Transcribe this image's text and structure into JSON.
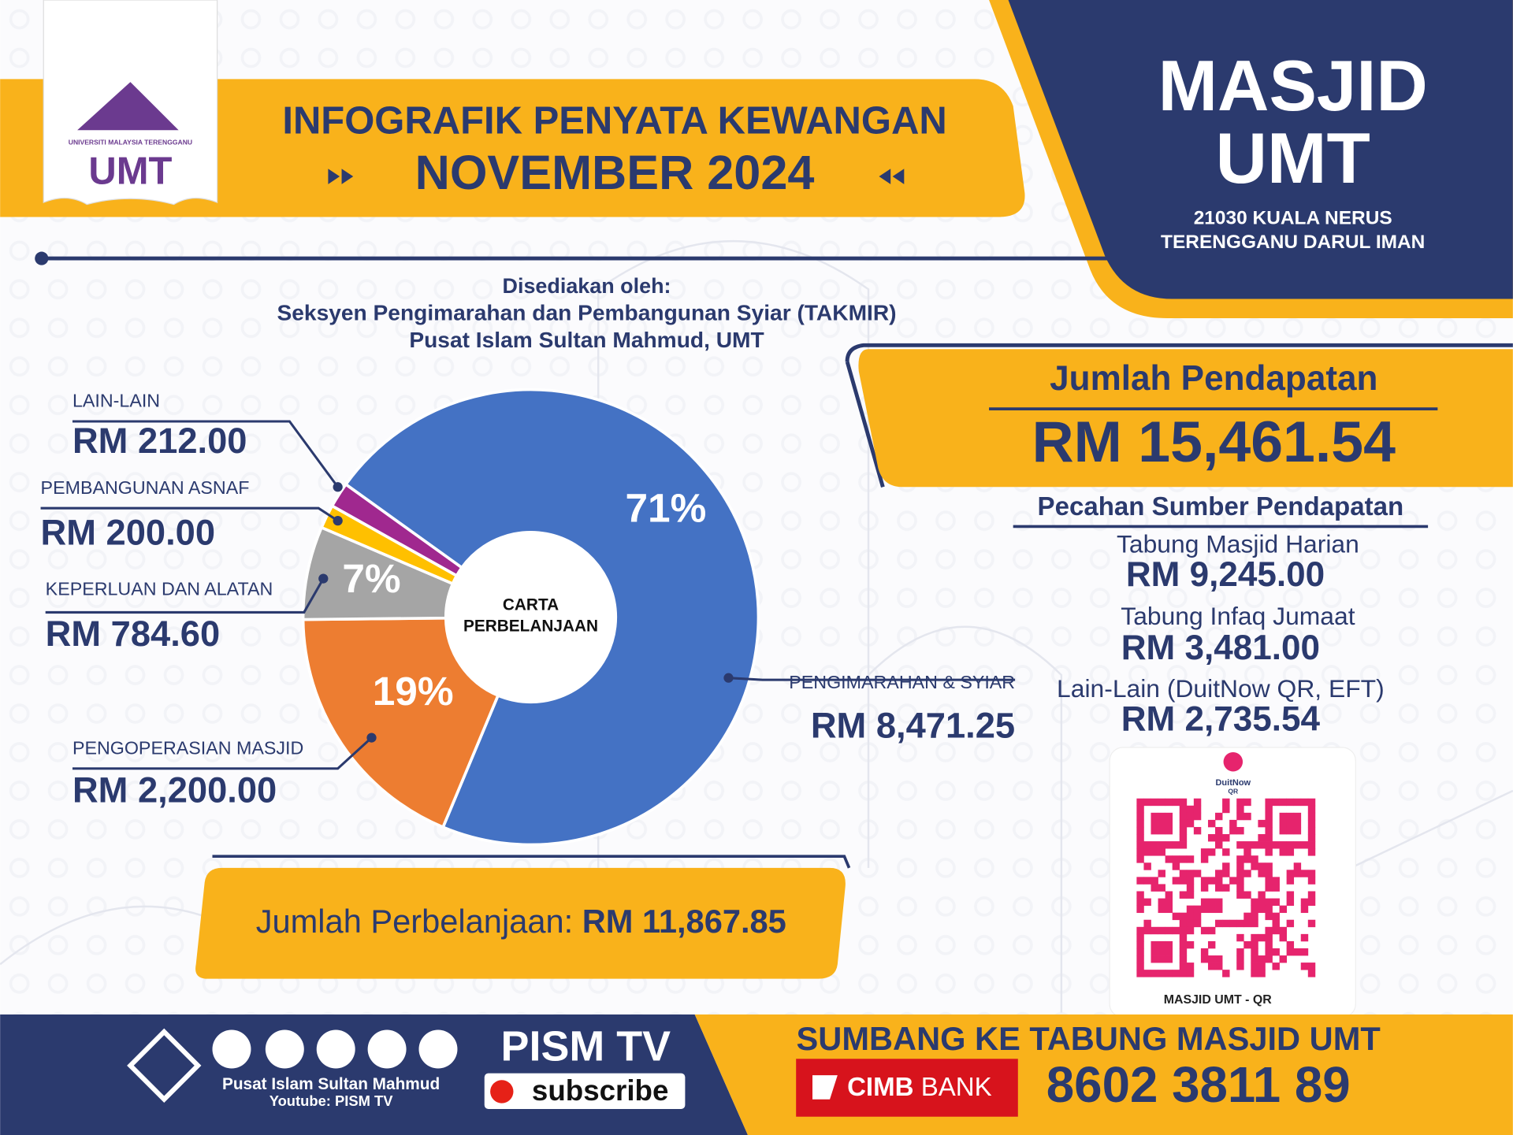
{
  "header": {
    "logo_text": "UMT",
    "logo_subtext": "UNIVERSITI MALAYSIA TERENGGANU",
    "title": "INFOGRAFIK PENYATA KEWANGAN",
    "subtitle": "NOVEMBER 2024"
  },
  "masjid": {
    "name": [
      "MASJID",
      "UMT"
    ],
    "address": [
      "21030 KUALA NERUS",
      "TERENGGANU DARUL IMAN"
    ]
  },
  "prepared": [
    "Disediakan oleh:",
    "Seksyen Pengimarahan dan Pembangunan Syiar (TAKMIR)",
    "Pusat Islam Sultan Mahmud, UMT"
  ],
  "chart_data": {
    "type": "donut",
    "center_label": [
      "CARTA",
      "PERBELANJAAN"
    ],
    "categories": [
      "PENGIMARAHAN & SYIAR",
      "PENGOPERASIAN MASJID",
      "KEPERLUAN DAN ALATAN",
      "PEMBANGUNAN ASNAF",
      "LAIN-LAIN"
    ],
    "values": [
      8471.25,
      2200.0,
      784.6,
      200.0,
      212.0
    ],
    "value_labels": [
      "RM 8,471.25",
      "RM 2,200.00",
      "RM 784.60",
      "RM 200.00",
      "RM 212.00"
    ],
    "percent_labels": [
      "71%",
      "19%",
      "7%",
      null,
      null
    ],
    "colors": [
      "#4472c4",
      "#ed7d31",
      "#a5a5a5",
      "#ffc000",
      "#a0288f"
    ]
  },
  "income": {
    "title": "Jumlah Pendapatan",
    "total": "RM 15,461.54",
    "breakdown_title": "Pecahan Sumber Pendapatan",
    "sources": [
      {
        "name": "Tabung Masjid Harian",
        "value": "RM 9,245.00"
      },
      {
        "name": "Tabung Infaq Jumaat",
        "value": "RM 3,481.00"
      },
      {
        "name": "Lain-Lain (DuitNow QR, EFT)",
        "value": "RM 2,735.54"
      }
    ]
  },
  "expense_total": {
    "label": "Jumlah Perbelanjaan:",
    "value": "RM 11,867.85"
  },
  "qr": {
    "brand": "DuitNow",
    "brand_sub": "QR",
    "caption": "MASJID UMT - QR"
  },
  "footer": {
    "org": "Pusat Islam Sultan Mahmud",
    "youtube": "Youtube: PISM TV",
    "tv": "PISM TV",
    "subscribe": "subscribe",
    "donate": "SUMBANG KE TABUNG MASJID UMT",
    "bank": "CIMB",
    "bank_word": "BANK",
    "account": "8602 3811 89"
  }
}
